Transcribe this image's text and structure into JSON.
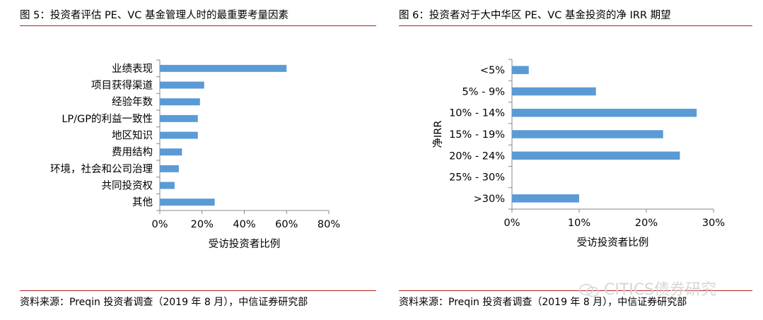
{
  "left_panel": {
    "title": "图 5：投资者评估 PE、VC 基金管理人时的最重要考量因素",
    "source": "资料来源：Preqin 投资者调查（2019 年 8 月），中信证券研究部"
  },
  "right_panel": {
    "title": "图 6：投资者对于大中华区 PE、VC 基金投资的净 IRR 期望",
    "source": "资料来源：Preqin 投资者调查（2019 年 8 月），中信证券研究部"
  },
  "watermark": "CITICS债券研究",
  "colors": {
    "bar": "#5b9bd5",
    "rule": "#b22222",
    "axis": "#888888"
  },
  "chart_data": [
    {
      "type": "bar",
      "orientation": "horizontal",
      "categories": [
        "业绩表现",
        "项目获得渠道",
        "经验年数",
        "LP/GP的利益一致性",
        "地区知识",
        "费用结构",
        "环境，社会和公司治理",
        "共同投资权",
        "其他"
      ],
      "values": [
        0.6,
        0.21,
        0.19,
        0.18,
        0.18,
        0.105,
        0.09,
        0.07,
        0.26
      ],
      "xlim": [
        0,
        0.8
      ],
      "ticks": [
        0,
        0.2,
        0.4,
        0.6,
        0.8
      ],
      "tick_labels": [
        "0%",
        "20%",
        "40%",
        "60%",
        "80%"
      ],
      "xlabel": "受访投资者比例",
      "ylabel": ""
    },
    {
      "type": "bar",
      "orientation": "horizontal",
      "categories": [
        "<5%",
        "5% - 9%",
        "10% - 14%",
        "15% - 19%",
        "20% - 24%",
        "25% - 30%",
        ">30%"
      ],
      "values": [
        0.025,
        0.125,
        0.275,
        0.225,
        0.25,
        0,
        0.1
      ],
      "xlim": [
        0,
        0.3
      ],
      "ticks": [
        0,
        0.1,
        0.2,
        0.3
      ],
      "tick_labels": [
        "0%",
        "10%",
        "20%",
        "30%"
      ],
      "xlabel": "受访投资者比例",
      "ylabel": "净IRR"
    }
  ]
}
